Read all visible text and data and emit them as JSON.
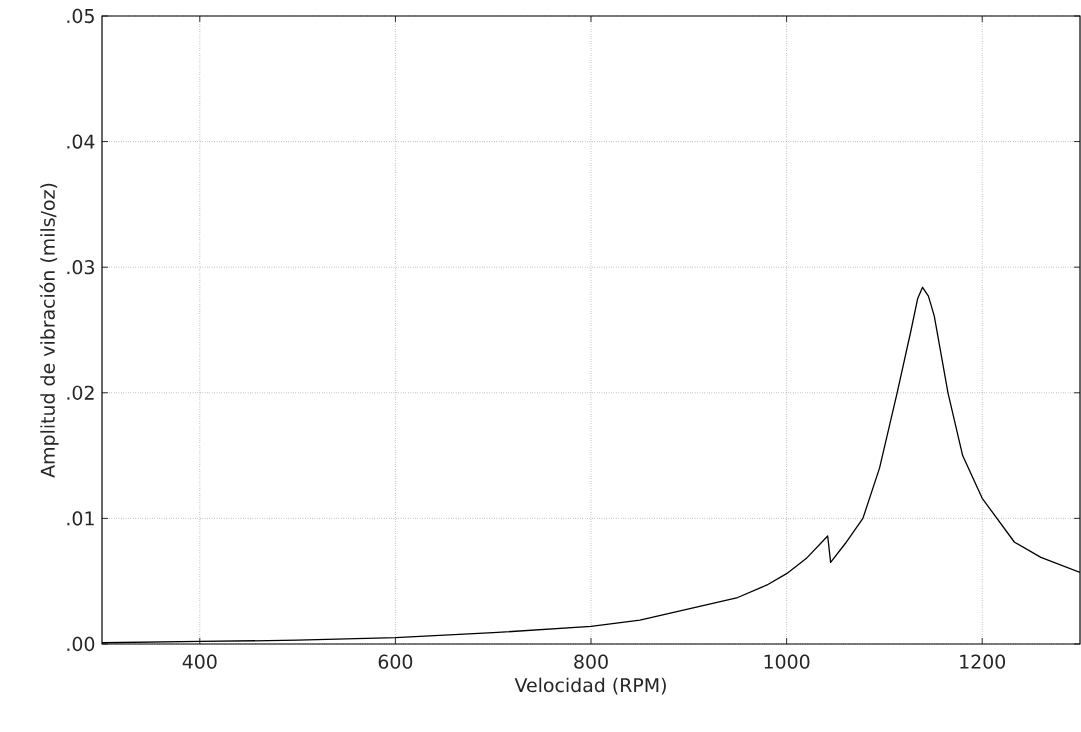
{
  "chart_data": {
    "type": "line",
    "xlabel": "Velocidad (RPM)",
    "ylabel": "Amplitud de vibración (mils/oz)",
    "x": [
      300,
      400,
      500,
      600,
      700,
      800,
      850,
      900,
      950,
      980,
      1000,
      1020,
      1042,
      1045,
      1060,
      1078,
      1095,
      1113,
      1127,
      1134,
      1139,
      1145,
      1151,
      1165,
      1180,
      1200,
      1233,
      1260,
      1300
    ],
    "series": [
      {
        "color": "#000000",
        "values": [
          0.0001,
          0.0002,
          0.0003,
          0.0005,
          0.0009,
          0.0014,
          0.0019,
          0.0028,
          0.0037,
          0.0047,
          0.0056,
          0.0068,
          0.0086,
          0.0065,
          0.008,
          0.01,
          0.014,
          0.02,
          0.0249,
          0.0275,
          0.0284,
          0.0277,
          0.0261,
          0.02,
          0.015,
          0.0116,
          0.0081,
          0.0069,
          0.0057
        ]
      }
    ],
    "xlim": [
      300,
      1300
    ],
    "ylim": [
      0,
      0.05
    ],
    "xticks": [
      400,
      600,
      800,
      1000,
      1200
    ],
    "yticks": [
      {
        "value": 0,
        "label": ".00"
      },
      {
        "value": 0.01,
        "label": ".01"
      },
      {
        "value": 0.02,
        "label": ".02"
      },
      {
        "value": 0.03,
        "label": ".03"
      },
      {
        "value": 0.04,
        "label": ".04"
      },
      {
        "value": 0.05,
        "label": ".05"
      }
    ],
    "grid": true,
    "line_style": "solid",
    "marker": "none"
  }
}
